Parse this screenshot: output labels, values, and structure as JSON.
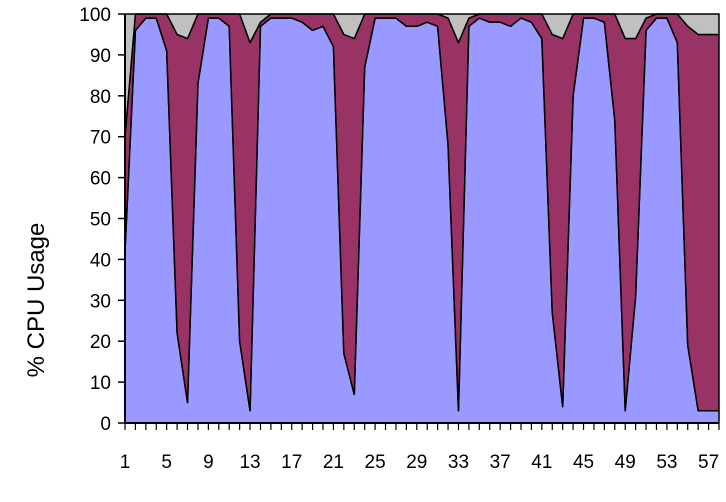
{
  "chart_data": {
    "type": "area",
    "stacked": true,
    "ylabel": "% CPU Usage",
    "xlabel": "",
    "ylim": [
      0,
      100
    ],
    "yticks": [
      0,
      10,
      20,
      30,
      40,
      50,
      60,
      70,
      80,
      90,
      100
    ],
    "x": [
      1,
      2,
      3,
      4,
      5,
      6,
      7,
      8,
      9,
      10,
      11,
      12,
      13,
      14,
      15,
      16,
      17,
      18,
      19,
      20,
      21,
      22,
      23,
      24,
      25,
      26,
      27,
      28,
      29,
      30,
      31,
      32,
      33,
      34,
      35,
      36,
      37,
      38,
      39,
      40,
      41,
      42,
      43,
      44,
      45,
      46,
      47,
      48,
      49,
      50,
      51,
      52,
      53,
      54,
      55,
      56,
      57,
      58
    ],
    "xtick_labels": [
      "1",
      "5",
      "9",
      "13",
      "17",
      "21",
      "25",
      "29",
      "33",
      "37",
      "41",
      "45",
      "49",
      "53",
      "57"
    ],
    "grid": false,
    "legend": "none",
    "series": [
      {
        "color": "#9999ff",
        "values": [
          42,
          96,
          99,
          99,
          91,
          22,
          5,
          83,
          99,
          99,
          97,
          20,
          3,
          97,
          99,
          99,
          99,
          98,
          96,
          97,
          92,
          17,
          7,
          87,
          99,
          99,
          99,
          97,
          97,
          98,
          97,
          68,
          3,
          97,
          99,
          98,
          98,
          97,
          99,
          98,
          94,
          27,
          4,
          80,
          99,
          99,
          98,
          74,
          3,
          31,
          96,
          99,
          99,
          93,
          19,
          3,
          3,
          3
        ]
      },
      {
        "color": "#993366",
        "values": [
          28,
          4,
          1,
          1,
          9,
          73,
          89,
          17,
          1,
          1,
          3,
          80,
          90,
          1,
          1,
          1,
          1,
          2,
          4,
          3,
          8,
          78,
          87,
          13,
          1,
          1,
          1,
          3,
          3,
          2,
          3,
          31,
          90,
          2,
          1,
          2,
          2,
          3,
          1,
          2,
          6,
          68,
          90,
          20,
          1,
          1,
          2,
          26,
          91,
          63,
          3,
          1,
          1,
          7,
          78,
          92,
          92,
          92
        ]
      },
      {
        "color": "#c0c0c0",
        "values": [
          30,
          0,
          0,
          0,
          0,
          5,
          6,
          0,
          0,
          0,
          0,
          0,
          7,
          2,
          0,
          0,
          0,
          0,
          0,
          0,
          0,
          5,
          6,
          0,
          0,
          0,
          0,
          0,
          0,
          0,
          0,
          1,
          7,
          1,
          0,
          0,
          0,
          0,
          0,
          0,
          0,
          5,
          6,
          0,
          0,
          0,
          0,
          0,
          6,
          6,
          1,
          0,
          0,
          0,
          3,
          5,
          5,
          5
        ]
      }
    ],
    "colors": {
      "axis": "#000000",
      "background": "#ffffff"
    }
  }
}
